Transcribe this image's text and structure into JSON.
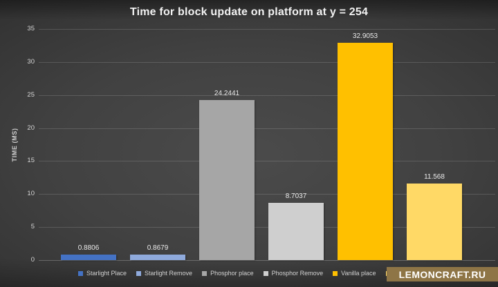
{
  "chart_data": {
    "type": "bar",
    "title": "Time for block update on platform at y = 254",
    "xlabel": "",
    "ylabel": "TIME (MS)",
    "ylim": [
      0,
      35
    ],
    "yticks": [
      0,
      5,
      10,
      15,
      20,
      25,
      30,
      35
    ],
    "grid": true,
    "legend_position": "bottom",
    "series": [
      {
        "name": "Starlight Place",
        "value": 0.8806,
        "data_label": "0.8806",
        "color": "#4472c4",
        "legend_label_visible": true
      },
      {
        "name": "Starlight Remove",
        "value": 0.8679,
        "data_label": "0.8679",
        "color": "#8faadc",
        "legend_label_visible": true
      },
      {
        "name": "Phosphor place",
        "value": 24.2441,
        "data_label": "24.2441",
        "color": "#a6a6a6",
        "legend_label_visible": true
      },
      {
        "name": "Phosphor Remove",
        "value": 8.7037,
        "data_label": "8.7037",
        "color": "#cfcfcf",
        "legend_label_visible": true
      },
      {
        "name": "Vanilla place",
        "value": 32.9053,
        "data_label": "32.9053",
        "color": "#ffc000",
        "legend_label_visible": true
      },
      {
        "name": "",
        "value": 11.568,
        "data_label": "11.568",
        "color": "#ffd966",
        "legend_label_visible": false
      }
    ],
    "colors": {
      "background_center": "#4b4b4b",
      "background_edge": "#1a1a1a",
      "gridline": "rgba(255,255,255,0.15)",
      "title_text": "#f2f2f2",
      "axis_text": "#d6d6d6",
      "data_label_text": "#eaeaea"
    }
  },
  "watermark": {
    "text": "LEMONCRAFT.RU",
    "background": "#8e7546",
    "text_color": "#ffffff"
  }
}
